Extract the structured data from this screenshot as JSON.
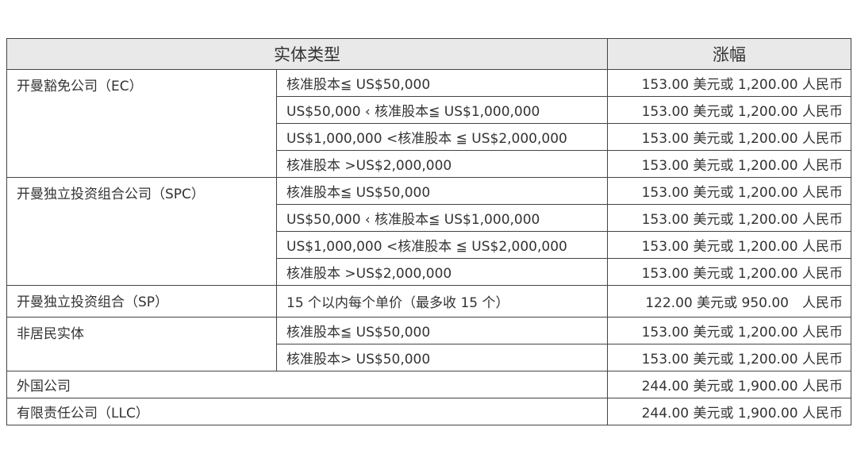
{
  "header": {
    "entity_type": "实体类型",
    "fee": "涨幅"
  },
  "groups": [
    {
      "name": "开曼豁免公司（EC）",
      "rows": [
        {
          "cond": "核准股本≦ US$50,000",
          "fee": "153.00 美元或 1,200.00 人民币"
        },
        {
          "cond": "US$50,000 ‹ 核准股本≦  US$1,000,000",
          "fee": "153.00 美元或 1,200.00 人民币"
        },
        {
          "cond": "US$1,000,000 <核准股本 ≦ US$2,000,000",
          "fee": "153.00 美元或 1,200.00 人民币"
        },
        {
          "cond": "核准股本 >US$2,000,000",
          "fee": "153.00 美元或 1,200.00 人民币"
        }
      ]
    },
    {
      "name": "开曼独立投资组合公司（SPC）",
      "rows": [
        {
          "cond": "核准股本≦ US$50,000",
          "fee": "153.00 美元或 1,200.00 人民币"
        },
        {
          "cond": "US$50,000 ‹ 核准股本≦  US$1,000,000",
          "fee": "153.00 美元或 1,200.00 人民币"
        },
        {
          "cond": "US$1,000,000 <核准股本 ≦ US$2,000,000",
          "fee": "153.00 美元或 1,200.00 人民币"
        },
        {
          "cond": "核准股本 >US$2,000,000",
          "fee": "153.00 美元或 1,200.00 人民币"
        }
      ]
    },
    {
      "name": "开曼独立投资组合（SP）",
      "rows": [
        {
          "cond": "15 个以内每个单价（最多收 15 个）",
          "fee": "122.00 美元或 950.00　人民币"
        }
      ]
    },
    {
      "name": "非居民实体",
      "rows": [
        {
          "cond": "核准股本≦ US$50,000",
          "fee": "153.00 美元或 1,200.00 人民币"
        },
        {
          "cond": "核准股本> US$50,000",
          "fee": "153.00 美元或 1,200.00 人民币"
        }
      ]
    }
  ],
  "singles": [
    {
      "name": "外国公司",
      "fee": "244.00 美元或 1,900.00 人民币"
    },
    {
      "name": "有限责任公司（LLC）",
      "fee": "244.00 美元或 1,900.00 人民币"
    }
  ]
}
